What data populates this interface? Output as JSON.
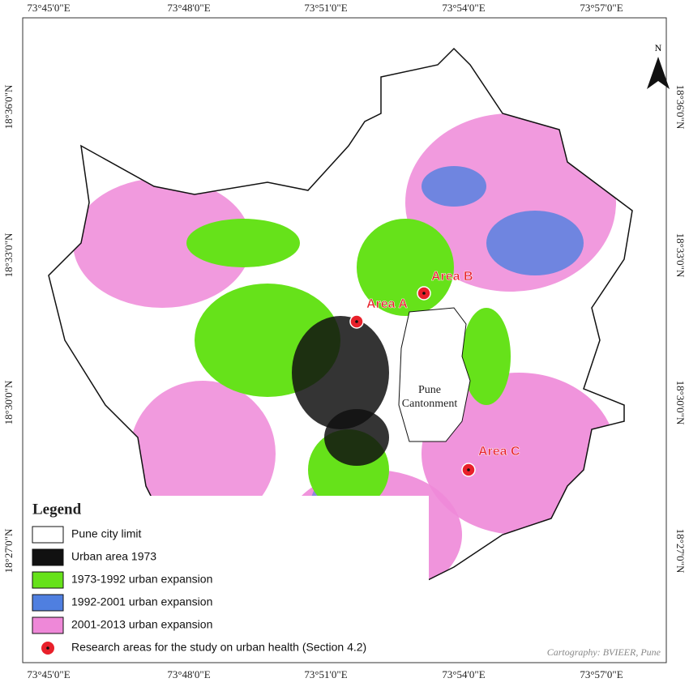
{
  "graticule": {
    "longitudes": [
      "73°45'0\"E",
      "73°48'0\"E",
      "73°51'0\"E",
      "73°54'0\"E",
      "73°57'0\"E"
    ],
    "latitudes": [
      "18°36'0\"N",
      "18°33'0\"N",
      "18°30'0\"N",
      "18°27'0\"N"
    ]
  },
  "north": "N",
  "places": [
    "Area A",
    "Area B",
    "Area C",
    "Pune Cantonment"
  ],
  "legend": {
    "title": "Legend",
    "items": [
      {
        "label": "Pune city limit",
        "color": "#ffffff"
      },
      {
        "label": "Urban area 1973",
        "color": "#111111"
      },
      {
        "label": "1973-1992 urban expansion",
        "color": "#66e21a"
      },
      {
        "label": "1992-2001 urban expansion",
        "color": "#4f7fe0"
      },
      {
        "label": "2001-2013 urban expansion",
        "color": "#ee88d8"
      },
      {
        "label": "Research areas for the study on urban health (Section 4.2)",
        "color": "#e8202a"
      }
    ]
  },
  "credit": "Cartography: BVIEER, Pune"
}
